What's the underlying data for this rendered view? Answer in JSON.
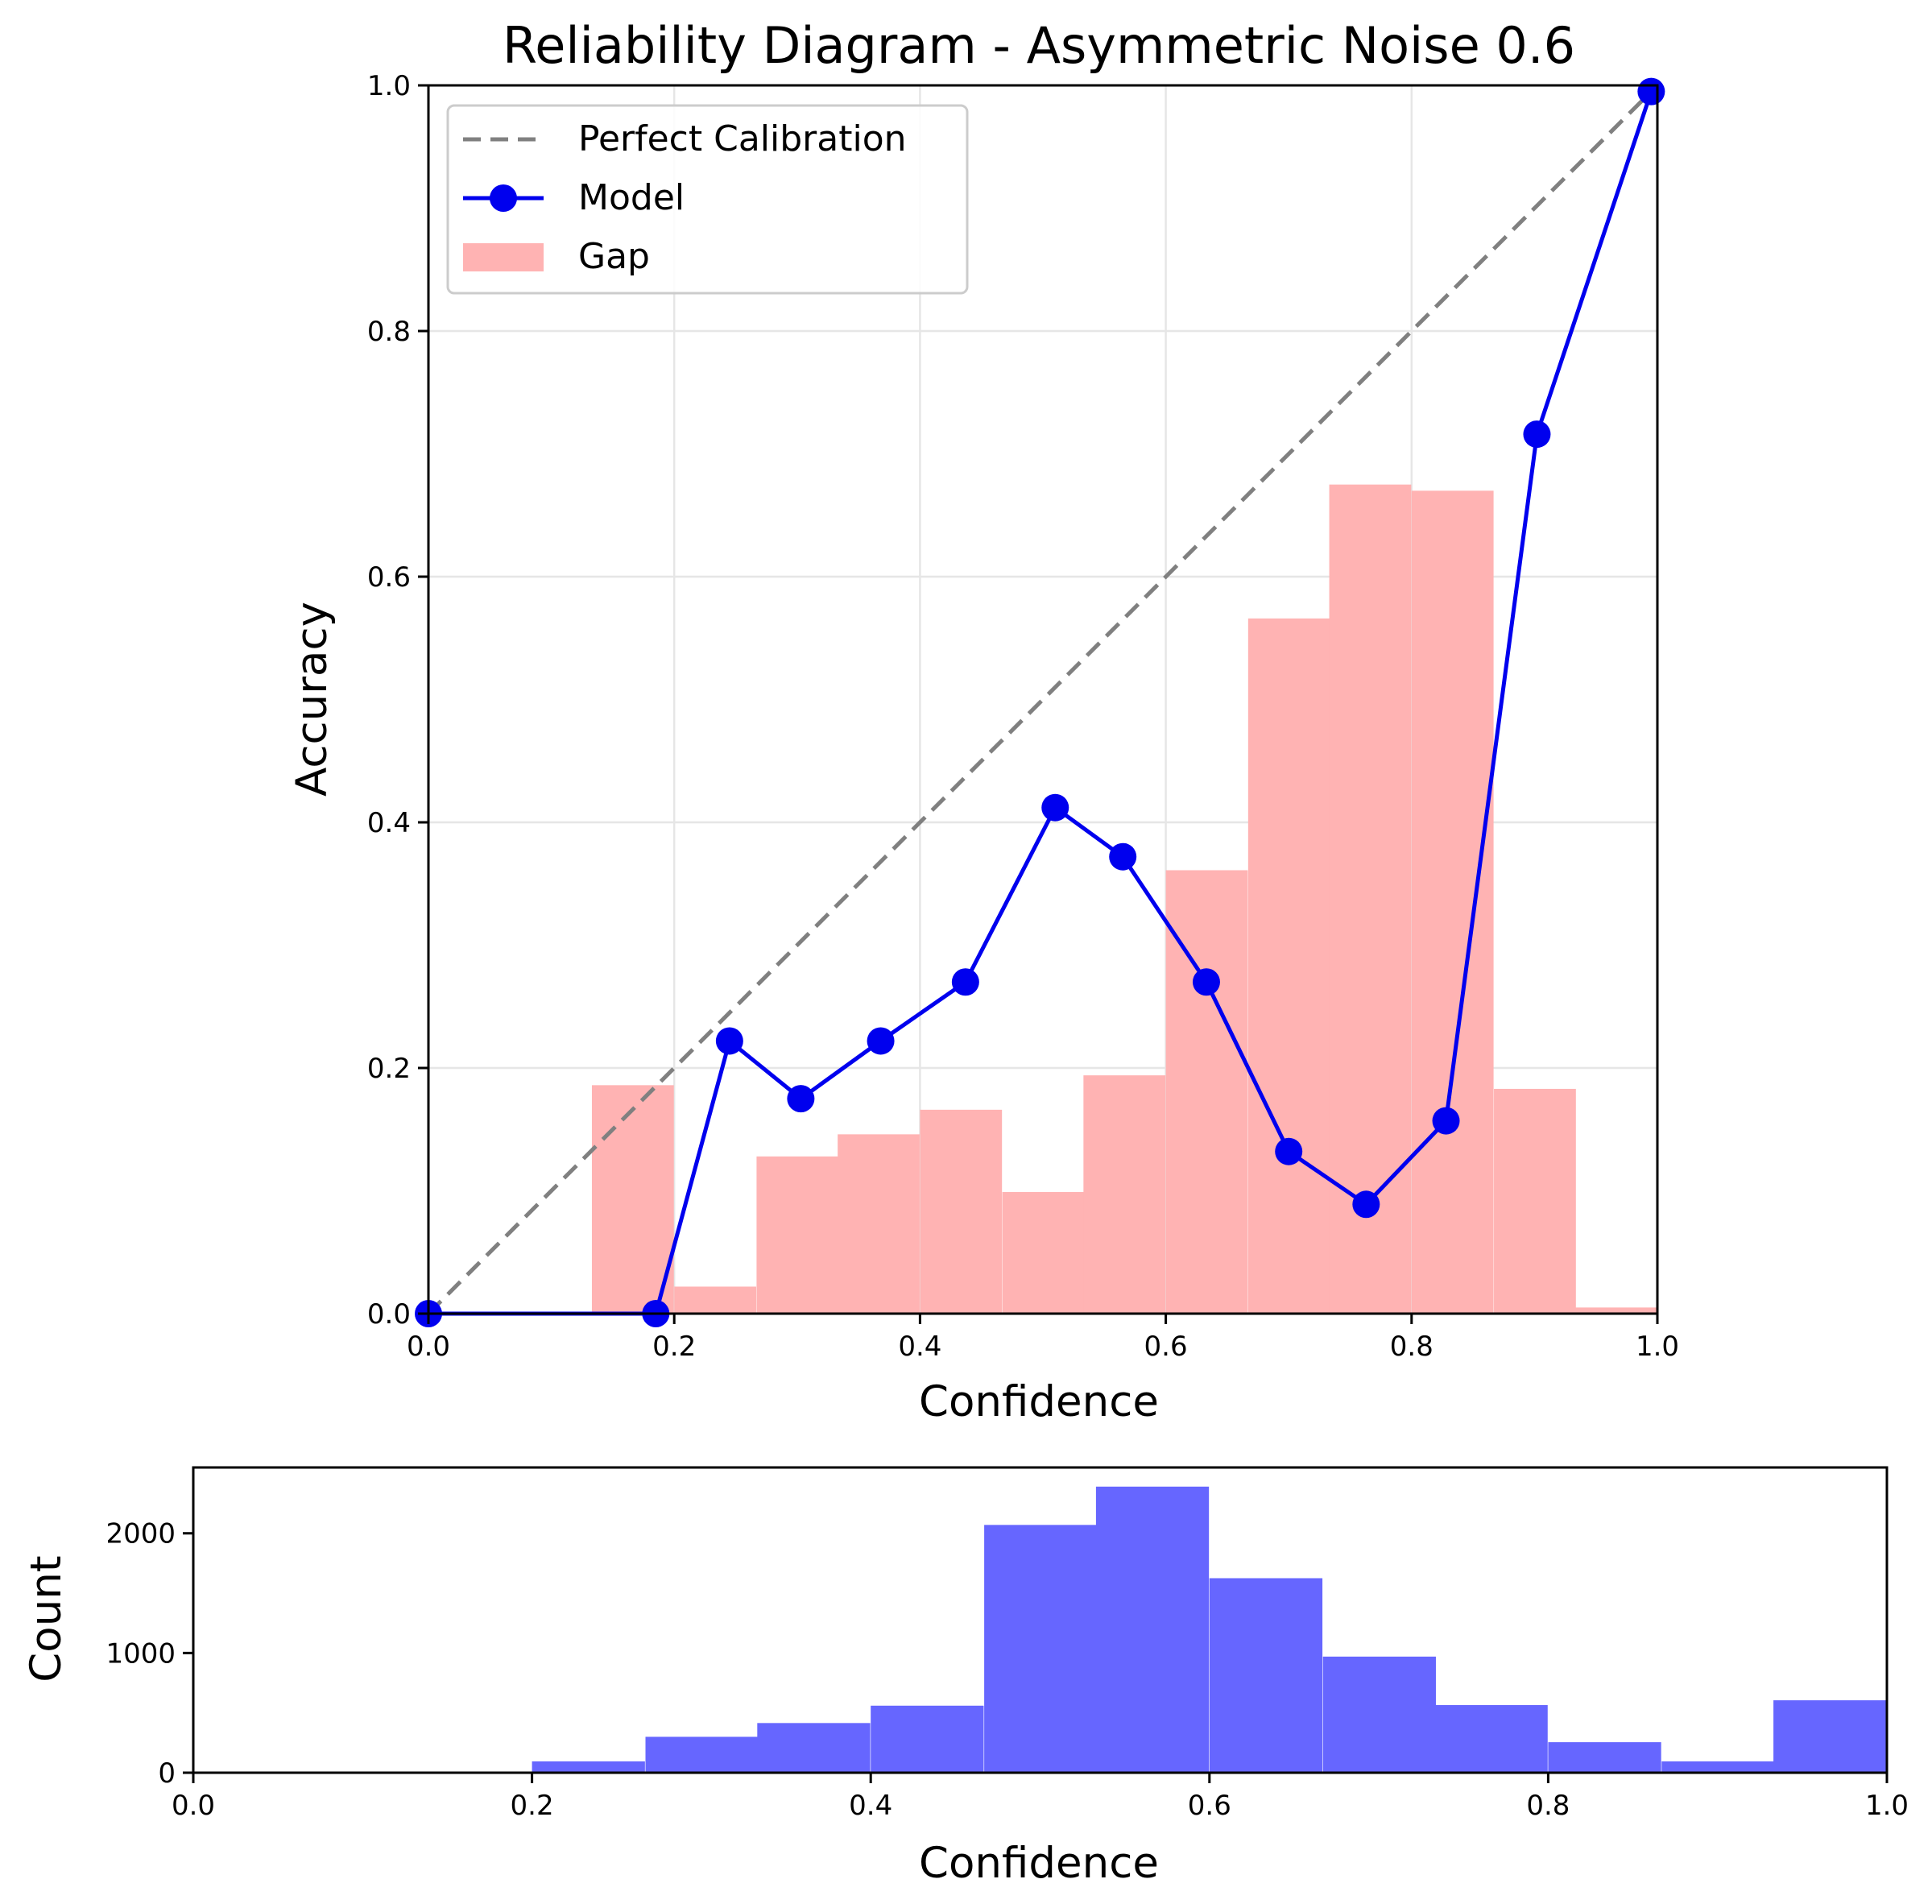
{
  "chart_data": [
    {
      "type": "line",
      "title": "Reliability Diagram - Asymmetric Noise 0.6",
      "xlabel": "Confidence",
      "ylabel": "Accuracy",
      "xlim": [
        0,
        1
      ],
      "ylim": [
        0,
        1
      ],
      "xticks": [
        "0.0",
        "0.2",
        "0.4",
        "0.6",
        "0.8",
        "1.0"
      ],
      "yticks": [
        "0.0",
        "0.2",
        "0.4",
        "0.6",
        "0.8",
        "1.0"
      ],
      "grid": true,
      "legend_position": "top-left",
      "legend": [
        "Perfect Calibration",
        "Model",
        "Gap"
      ],
      "series": [
        {
          "name": "Perfect Calibration",
          "kind": "line",
          "style": "dashed",
          "color": "#808080",
          "x": [
            0,
            1
          ],
          "y": [
            0,
            1
          ]
        },
        {
          "name": "Model",
          "kind": "line",
          "marker": "circle",
          "color": "#0000ee",
          "x": [
            0.0,
            0.185,
            0.245,
            0.303,
            0.368,
            0.437,
            0.51,
            0.565,
            0.633,
            0.7,
            0.763,
            0.828,
            0.902,
            0.995
          ],
          "y": [
            0.0,
            0.0,
            0.222,
            0.175,
            0.222,
            0.27,
            0.412,
            0.372,
            0.27,
            0.132,
            0.089,
            0.157,
            0.716,
            0.995
          ]
        },
        {
          "name": "Gap",
          "kind": "bar",
          "color": "#ffb3b3",
          "bin_width": 0.0667,
          "bin_starts": [
            0.133,
            0.2,
            0.267,
            0.333,
            0.4,
            0.467,
            0.533,
            0.6,
            0.667,
            0.733,
            0.8,
            0.867,
            0.933
          ],
          "values": [
            0.186,
            0.022,
            0.128,
            0.146,
            0.166,
            0.099,
            0.194,
            0.361,
            0.566,
            0.675,
            0.67,
            0.183,
            0.005
          ]
        }
      ]
    },
    {
      "type": "bar",
      "xlabel": "Confidence",
      "ylabel": "Count",
      "xlim": [
        0,
        1
      ],
      "ylim": [
        0,
        2550
      ],
      "xticks": [
        "0.0",
        "0.2",
        "0.4",
        "0.6",
        "0.8",
        "1.0"
      ],
      "yticks": [
        "0",
        "1000",
        "2000"
      ],
      "grid": false,
      "color": "#6666ff",
      "bin_width": 0.0667,
      "bin_starts": [
        0.2,
        0.267,
        0.333,
        0.4,
        0.467,
        0.533,
        0.6,
        0.667,
        0.733,
        0.8,
        0.867,
        0.933
      ],
      "values": [
        95,
        300,
        415,
        560,
        2070,
        2390,
        1625,
        970,
        565,
        255,
        95,
        605
      ]
    }
  ]
}
